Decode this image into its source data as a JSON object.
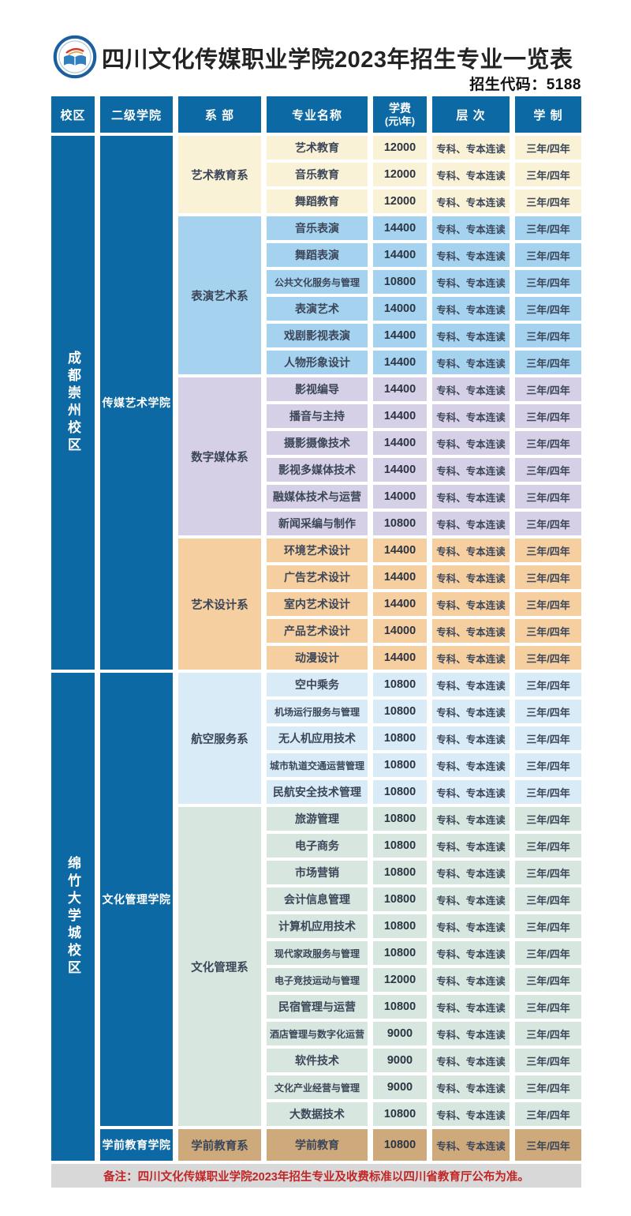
{
  "header": {
    "title": "四川文化传媒职业学院2023年招生专业一览表",
    "admission_code": "招生代码：5188",
    "logo_icon": "college-emblem"
  },
  "columns": {
    "campus": "校区",
    "college": "二级学院",
    "department": "系 部",
    "major": "专业名称",
    "fee_line1": "学费",
    "fee_line2": "(元\\年)",
    "level": "层 次",
    "duration": "学 制"
  },
  "table": {
    "level_text": "专科、专本连读",
    "duration_text": "三年/四年",
    "campuses": [
      {
        "name": "成都崇州校区",
        "colleges": [
          {
            "name": "传媒艺术学院",
            "departments": [
              {
                "name": "艺术教育系",
                "theme": "cream",
                "rows": [
                  [
                    "艺术教育",
                    "12000"
                  ],
                  [
                    "音乐教育",
                    "12000"
                  ],
                  [
                    "舞蹈教育",
                    "12000"
                  ]
                ]
              },
              {
                "name": "表演艺术系",
                "theme": "blue",
                "rows": [
                  [
                    "音乐表演",
                    "14400"
                  ],
                  [
                    "舞蹈表演",
                    "14400"
                  ],
                  [
                    "公共文化服务与管理",
                    "10800"
                  ],
                  [
                    "表演艺术",
                    "14000"
                  ],
                  [
                    "戏剧影视表演",
                    "14400"
                  ],
                  [
                    "人物形象设计",
                    "14400"
                  ]
                ]
              },
              {
                "name": "数字媒体系",
                "theme": "purple",
                "rows": [
                  [
                    "影视编导",
                    "14400"
                  ],
                  [
                    "播音与主持",
                    "14400"
                  ],
                  [
                    "摄影摄像技术",
                    "14400"
                  ],
                  [
                    "影视多媒体技术",
                    "14400"
                  ],
                  [
                    "融媒体技术与运营",
                    "14000"
                  ],
                  [
                    "新闻采编与制作",
                    "10800"
                  ]
                ]
              },
              {
                "name": "艺术设计系",
                "theme": "peach",
                "rows": [
                  [
                    "环境艺术设计",
                    "14400"
                  ],
                  [
                    "广告艺术设计",
                    "14400"
                  ],
                  [
                    "室内艺术设计",
                    "14400"
                  ],
                  [
                    "产品艺术设计",
                    "14000"
                  ],
                  [
                    "动漫设计",
                    "14400"
                  ]
                ]
              }
            ]
          }
        ]
      },
      {
        "name": "绵竹大学城校区",
        "colleges": [
          {
            "name": "文化管理学院",
            "departments": [
              {
                "name": "航空服务系",
                "theme": "pale_blue",
                "rows": [
                  [
                    "空中乘务",
                    "10800"
                  ],
                  [
                    "机场运行服务与管理",
                    "10800"
                  ],
                  [
                    "无人机应用技术",
                    "10800"
                  ],
                  [
                    "城市轨道交通运营管理",
                    "10800"
                  ],
                  [
                    "民航安全技术管理",
                    "10800"
                  ]
                ]
              },
              {
                "name": "文化管理系",
                "theme": "green",
                "rows": [
                  [
                    "旅游管理",
                    "10800"
                  ],
                  [
                    "电子商务",
                    "10800"
                  ],
                  [
                    "市场营销",
                    "10800"
                  ],
                  [
                    "会计信息管理",
                    "10800"
                  ],
                  [
                    "计算机应用技术",
                    "10800"
                  ],
                  [
                    "现代家政服务与管理",
                    "10800"
                  ],
                  [
                    "电子竞技运动与管理",
                    "12000"
                  ],
                  [
                    "民宿管理与运营",
                    "10800"
                  ],
                  [
                    "酒店管理与数字化运营",
                    "9000"
                  ],
                  [
                    "软件技术",
                    "9000"
                  ],
                  [
                    "文化产业经营与管理",
                    "9000"
                  ],
                  [
                    "大数据技术",
                    "10800"
                  ]
                ]
              }
            ]
          },
          {
            "name": "学前教育学院",
            "departments": [
              {
                "name": "学前教育系",
                "theme": "tan",
                "rows": [
                  [
                    "学前教育",
                    "10800"
                  ]
                ]
              }
            ]
          }
        ]
      }
    ]
  },
  "footer": {
    "note": "备注：四川文化传媒职业学院2023年招生专业及收费标准以四川省教育厅公布为准。"
  },
  "colors": {
    "brand_blue": "#0d69a3",
    "text_dark": "#3c4659",
    "cream": "#faf2d6",
    "blue": "#a5d2ee",
    "purple": "#d6d0e6",
    "peach": "#f6cfa0",
    "pale_blue": "#d8ebf7",
    "green": "#d7e7df",
    "tan": "#cda97b",
    "footer_bg": "#d8d8d8",
    "note_red": "#c22525"
  }
}
